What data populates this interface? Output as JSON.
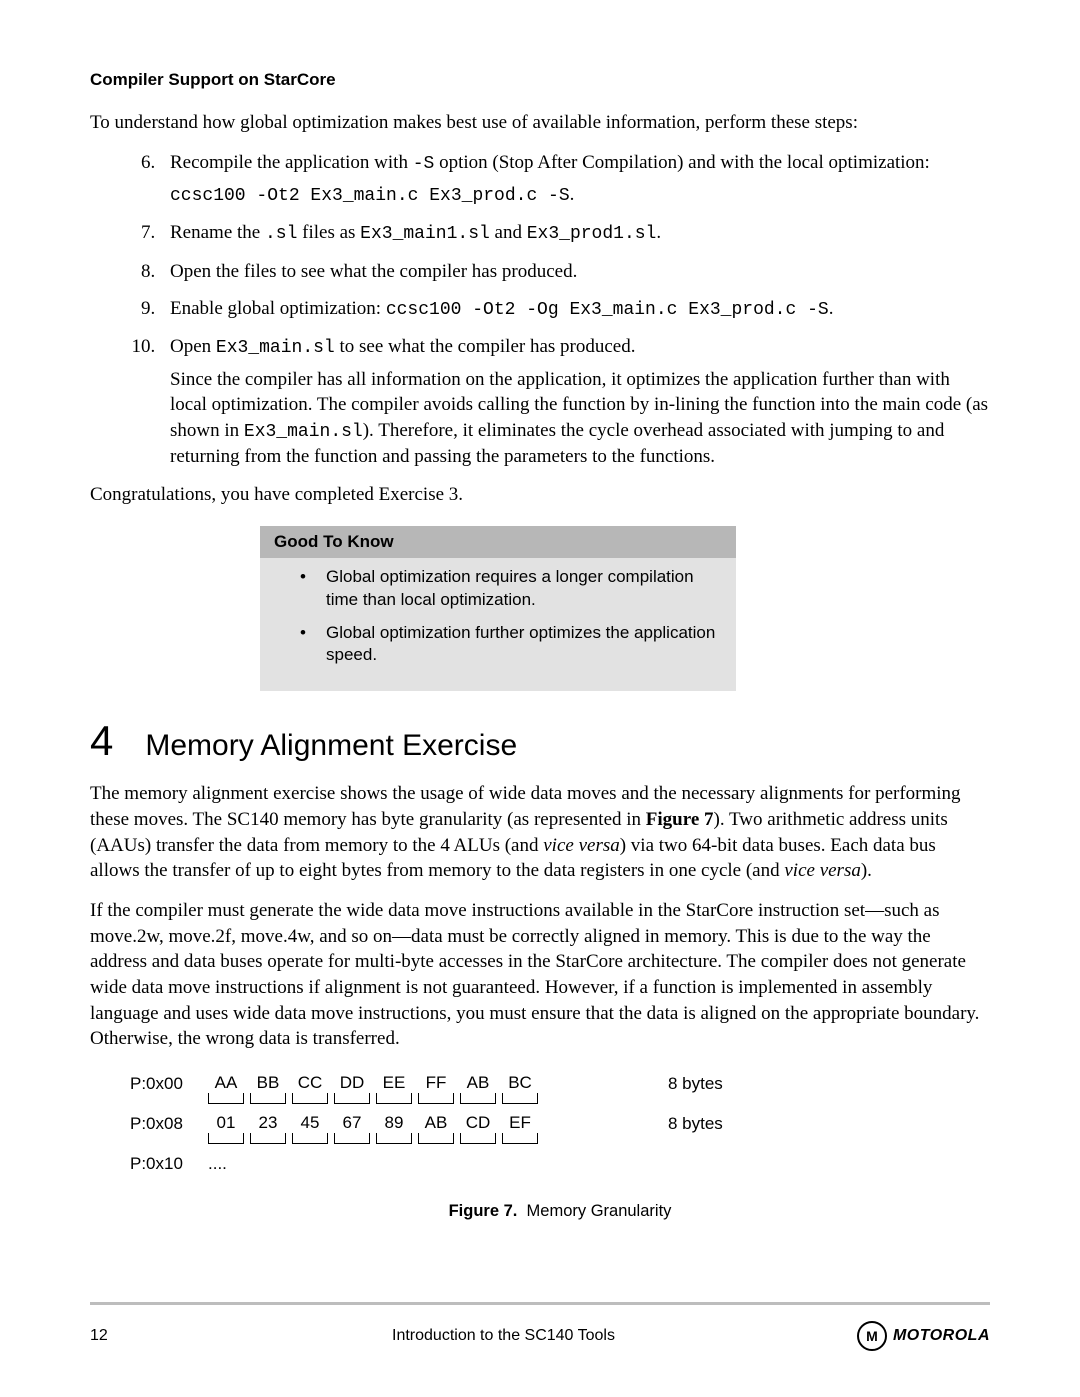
{
  "header": {
    "section": "Compiler Support on StarCore"
  },
  "intro": "To understand how global optimization makes best use of available information, perform these steps:",
  "steps": {
    "start": 6,
    "s6_a": "Recompile the application with ",
    "s6_code1": "-S",
    "s6_b": " option (Stop After Compilation) and with the local optimization: ",
    "s6_cmd": "ccsc100 -Ot2 Ex3_main.c Ex3_prod.c -S",
    "s6_dot": ".",
    "s7_a": "Rename the ",
    "s7_code1": ".sl",
    "s7_b": " files as ",
    "s7_code2": "Ex3_main1.sl",
    "s7_c": " and ",
    "s7_code3": "Ex3_prod1.sl",
    "s7_d": ".",
    "s8": "Open the files to see what the compiler has produced.",
    "s9_a": "Enable global optimization: ",
    "s9_cmd": "ccsc100 -Ot2 -Og Ex3_main.c Ex3_prod.c -S",
    "s9_b": ".",
    "s10_a": "Open ",
    "s10_code1": "Ex3_main.sl",
    "s10_b": " to see what the compiler has produced.",
    "s10_p2_a": "Since the compiler has all information on the application, it optimizes the application further than with local optimization. The compiler avoids calling the function by in-lining the function into the main code (as shown in ",
    "s10_p2_code": "Ex3_main.sl",
    "s10_p2_b": "). Therefore, it eliminates the cycle overhead associated with jumping to and returning from the function and passing the parameters to the functions."
  },
  "congrats": "Congratulations, you have completed Exercise 3.",
  "gtk": {
    "title": "Good To Know",
    "b1": "Global optimization requires a longer compilation time than local optimization.",
    "b2": "Global optimization further optimizes the application speed."
  },
  "chapter": {
    "num": "4",
    "title": "Memory Alignment Exercise"
  },
  "mem_p1_a": "The memory alignment exercise shows the usage of wide data moves and the necessary alignments for performing these moves. The SC140 memory has byte granularity (as represented in ",
  "mem_p1_figref": "Figure 7",
  "mem_p1_b": "). Two arithmetic address units (AAUs) transfer the data from memory to the 4 ALUs (and ",
  "mem_p1_vv1": "vice versa",
  "mem_p1_c": ") via two 64-bit data buses. Each data bus allows the transfer of up to eight bytes from memory to the data registers in one cycle (and ",
  "mem_p1_vv2": "vice versa",
  "mem_p1_d": ").",
  "mem_p2": "If the compiler must generate the wide data move instructions available in the StarCore instruction set—such as move.2w, move.2f, move.4w, and so on—data must be correctly aligned in memory. This is due to the way the address and data buses operate for multi-byte accesses in the StarCore architecture. The compiler does not generate wide data move instructions if alignment is not guaranteed. However, if a function is implemented in assembly language and uses wide data move instructions, you must ensure that the data is aligned on the appropriate boundary. Otherwise, the wrong data is transferred.",
  "figure": {
    "rows": [
      {
        "addr": "P:0x00",
        "bytes": [
          "AA",
          "BB",
          "CC",
          "DD",
          "EE",
          "FF",
          "AB",
          "BC"
        ],
        "note": "8 bytes"
      },
      {
        "addr": "P:0x08",
        "bytes": [
          "01",
          "23",
          "45",
          "67",
          "89",
          "AB",
          "CD",
          "EF"
        ],
        "note": "8 bytes"
      }
    ],
    "tail": {
      "addr": "P:0x10",
      "dots": "...."
    },
    "caption_label": "Figure 7.",
    "caption_text": "Memory Granularity"
  },
  "footer": {
    "pagenum": "12",
    "title": "Introduction to the SC140 Tools",
    "logo_glyph": "M",
    "logo_text": "MOTOROLA"
  }
}
